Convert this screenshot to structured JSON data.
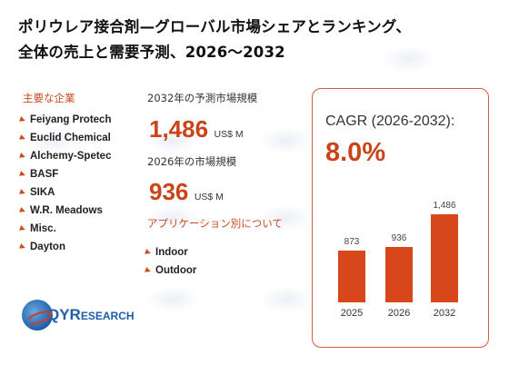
{
  "title": {
    "line1": "ポリウレア接合剤—グローバル市場シェアとランキング、",
    "line2": "全体の売上と需要予測、2026〜2032"
  },
  "companies": {
    "heading": "主要な企業",
    "items": [
      "Feiyang Protech",
      "Euclid Chemical",
      "Alchemy-Spetec",
      "BASF",
      "SIKA",
      "W.R. Meadows",
      "Misc.",
      "Dayton"
    ]
  },
  "forecast": {
    "label": "2032年の予測市場規模",
    "value": "1,486",
    "unit": "US$ M"
  },
  "current": {
    "label": "2026年の市場規模",
    "value": "936",
    "unit": "US$ M"
  },
  "applications": {
    "heading": "アプリケーション別について",
    "items": [
      "Indoor",
      "Outdoor"
    ]
  },
  "cagr": {
    "label": "CAGR (2026-2032):",
    "value": "8.0%"
  },
  "chart_data": {
    "type": "bar",
    "categories": [
      "2025",
      "2026",
      "2032"
    ],
    "values": [
      873,
      936,
      1486
    ],
    "value_labels": [
      "873",
      "936",
      "1,486"
    ],
    "color": "#d8471b"
  },
  "logo": {
    "text_main": "QYR",
    "text_rest": "ESEARCH"
  }
}
